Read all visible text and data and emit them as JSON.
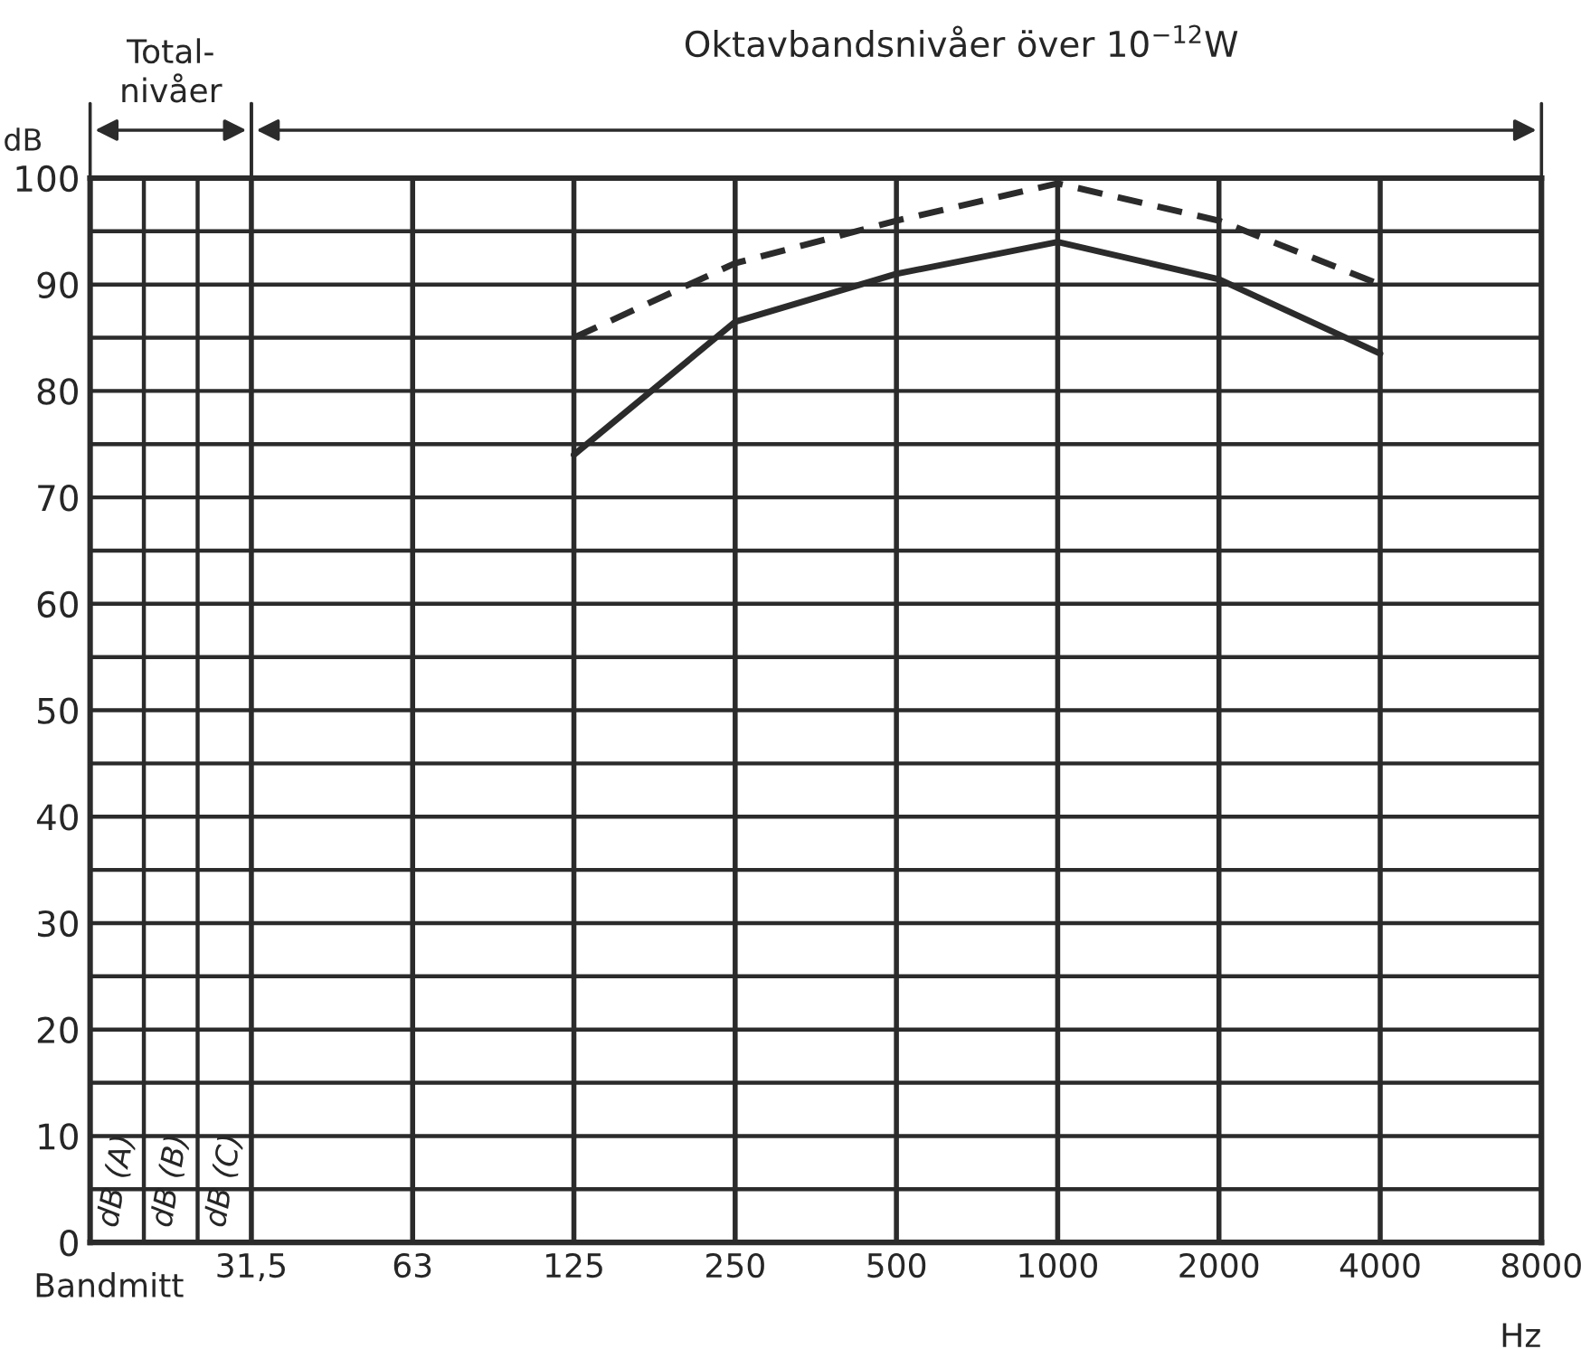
{
  "chart_data": {
    "type": "line",
    "title": "Oktavbandsnivåer över 10$^{−12}$W",
    "ylabel": "dB",
    "xlabel": "Hz",
    "categories": [
      "31,5",
      "63",
      "125",
      "250",
      "500",
      "1000",
      "2000",
      "4000",
      "8000"
    ],
    "series": [
      {
        "color": "#2b2b2b",
        "line_style": "solid",
        "values": [
          null,
          null,
          74,
          86.5,
          91,
          94,
          90.5,
          83.5,
          null
        ]
      },
      {
        "color": "#2b2b2b",
        "line_style": "dashed",
        "values": [
          null,
          null,
          85,
          92,
          96,
          99.5,
          96,
          90,
          null
        ]
      }
    ],
    "ylim": [
      0,
      100
    ],
    "yticks": [
      0,
      {
        "value": 5,
        "label": null
      },
      10,
      {
        "value": 15,
        "label": null
      },
      20,
      {
        "value": 25,
        "label": null
      },
      30,
      {
        "value": 35,
        "label": null
      },
      40,
      {
        "value": 45,
        "label": null
      },
      50,
      {
        "value": 55,
        "label": null
      },
      60,
      {
        "value": 65,
        "label": null
      },
      70,
      {
        "value": 75,
        "label": null
      },
      80,
      {
        "value": 85,
        "label": null
      },
      90,
      {
        "value": 95,
        "label": null
      },
      100
    ],
    "grid": true,
    "marker": "none",
    "annotations": [
      "Total-\nnivåer",
      "dB (A)",
      "dB (B)",
      "dB (C)",
      "Bandmitt"
    ]
  }
}
